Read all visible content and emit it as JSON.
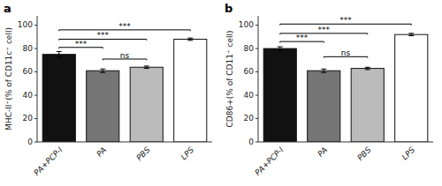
{
  "chart_data": [
    {
      "type": "bar",
      "title": "a",
      "categories": [
        "PA+PCP-I",
        "PA",
        "PBS",
        "LPS"
      ],
      "values": [
        75,
        61,
        64,
        88
      ],
      "errors": [
        2.5,
        1.5,
        1.0,
        1.0
      ],
      "colors": [
        "#111111",
        "#757575",
        "#bbbbbb",
        "#ffffff"
      ],
      "y_label": "MHC-II⁺(% of CD11c⁺ cell)",
      "ylim": [
        0,
        108
      ],
      "yticks": [
        0,
        20,
        40,
        60,
        80,
        100
      ],
      "grid": false,
      "annotations": [
        {
          "text": "***",
          "from": "PA+PCP-I",
          "to": "PA",
          "y": 80
        },
        {
          "text": "***",
          "from": "PA+PCP-I",
          "to": "PBS",
          "y": 87
        },
        {
          "text": "***",
          "from": "PA+PCP-I",
          "to": "LPS",
          "y": 95
        },
        {
          "text": "ns",
          "from": "PA",
          "to": "PBS",
          "y": 70
        }
      ]
    },
    {
      "type": "bar",
      "title": "b",
      "categories": [
        "PA+PCP-I",
        "PA",
        "PBS",
        "LPS"
      ],
      "values": [
        80,
        61,
        63,
        92
      ],
      "errors": [
        1.5,
        1.5,
        1.0,
        1.0
      ],
      "colors": [
        "#111111",
        "#757575",
        "#bbbbbb",
        "#ffffff"
      ],
      "y_label": "CD86+(% of CD11⁺ cell)",
      "ylim": [
        0,
        108
      ],
      "yticks": [
        0,
        20,
        40,
        60,
        80,
        100
      ],
      "grid": false,
      "annotations": [
        {
          "text": "***",
          "from": "PA+PCP-I",
          "to": "PA",
          "y": 85
        },
        {
          "text": "***",
          "from": "PA+PCP-I",
          "to": "PBS",
          "y": 92
        },
        {
          "text": "***",
          "from": "PA+PCP-I",
          "to": "LPS",
          "y": 100
        },
        {
          "text": "ns",
          "from": "PA",
          "to": "PBS",
          "y": 72
        }
      ]
    }
  ]
}
